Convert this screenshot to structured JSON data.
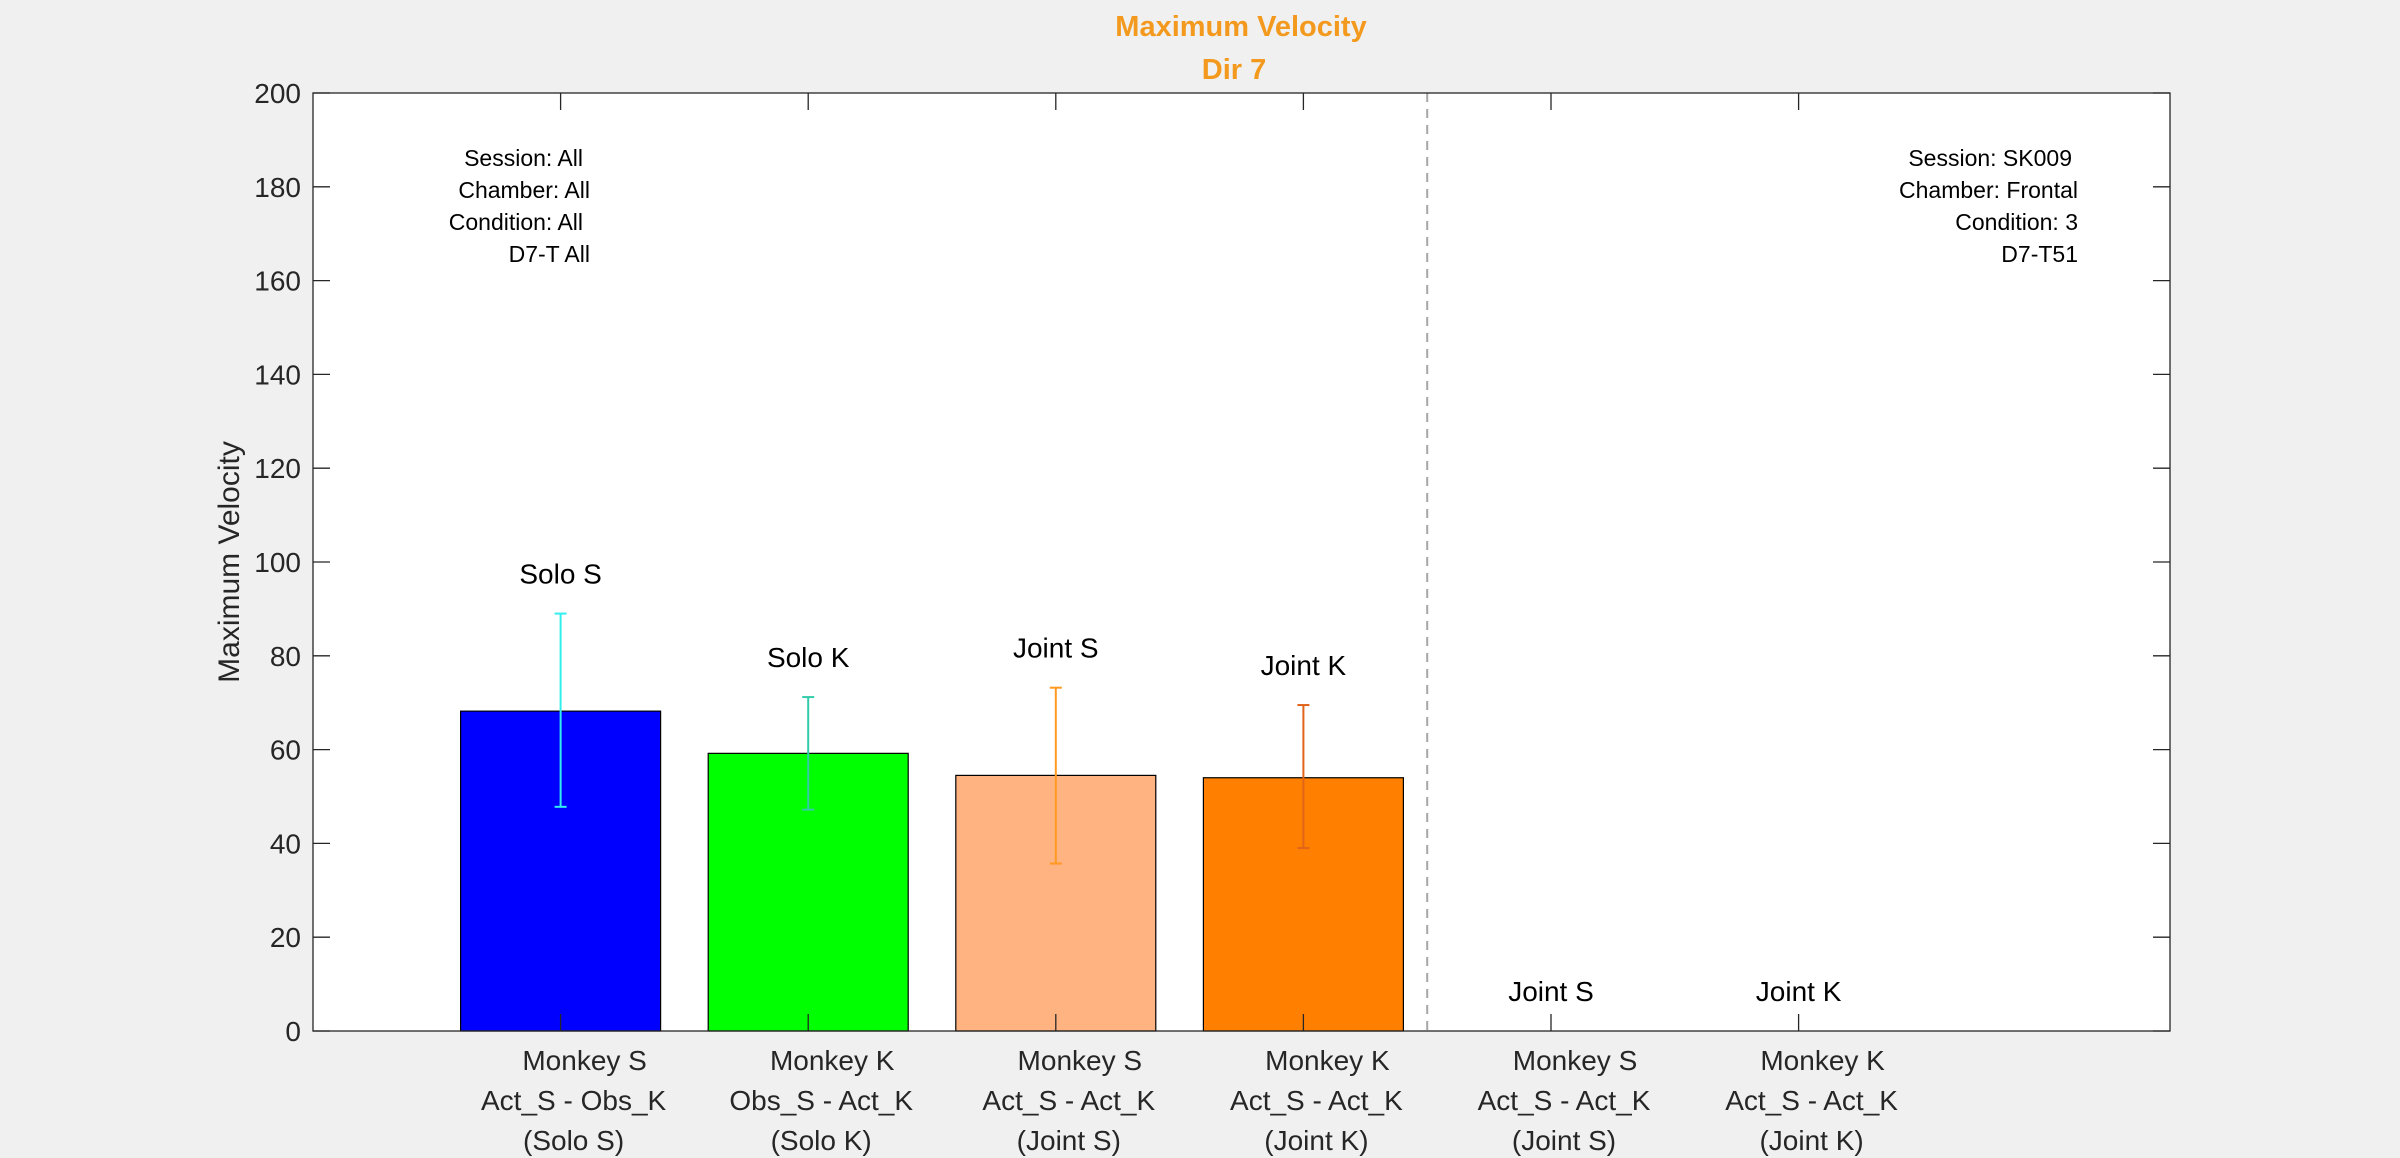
{
  "title_line1": "Maximum Velocity",
  "title_line2": "Dir 7",
  "colors": {
    "title": "#f39a1e",
    "background": "#f0f0f0",
    "plot_bg": "#ffffff",
    "axis": "#262626",
    "divider": "#a6a6a6"
  },
  "annotations": {
    "left": [
      "Session: All",
      "Chamber: All",
      "Condition: All",
      "D7-T All"
    ],
    "right": [
      "Session: SK009",
      "Chamber: Frontal",
      "Condition: 3",
      "D7-T51"
    ]
  },
  "chart_data": {
    "type": "bar",
    "title": "Maximum Velocity",
    "subtitle": "Dir 7",
    "ylabel": "Maximum Velocity",
    "xlabel": "",
    "ylim": [
      0,
      200
    ],
    "yticks": [
      0,
      20,
      40,
      60,
      80,
      100,
      120,
      140,
      160,
      180,
      200
    ],
    "xlim": [
      0,
      7.5
    ],
    "grid": false,
    "divider_x": 4.5,
    "categories": [
      {
        "line1": "Monkey S",
        "line2": "Act_S - Obs_K",
        "line3": "(Solo S)"
      },
      {
        "line1": "Monkey K",
        "line2": "Obs_S - Act_K",
        "line3": "(Solo K)"
      },
      {
        "line1": "Monkey S",
        "line2": "Act_S - Act_K",
        "line3": "(Joint S)"
      },
      {
        "line1": "Monkey K",
        "line2": "Act_S - Act_K",
        "line3": "(Joint K)"
      },
      {
        "line1": "Monkey S",
        "line2": "Act_S - Act_K",
        "line3": "(Joint S)"
      },
      {
        "line1": "Monkey K",
        "line2": "Act_S - Act_K",
        "line3": "(Joint K)"
      }
    ],
    "bars": [
      {
        "label": "Solo S",
        "x": 1,
        "value": 68.2,
        "err_low": 47.8,
        "err_high": 89.0,
        "color": "#0000ff",
        "err_color": "#33eeee"
      },
      {
        "label": "Solo K",
        "x": 2,
        "value": 59.2,
        "err_low": 47.2,
        "err_high": 71.2,
        "color": "#00ff00",
        "err_color": "#33ccaa"
      },
      {
        "label": "Joint S",
        "x": 3,
        "value": 54.5,
        "err_low": 35.7,
        "err_high": 73.2,
        "color": "#ffb380",
        "err_color": "#ff9922"
      },
      {
        "label": "Joint K",
        "x": 4,
        "value": 54.0,
        "err_low": 39.0,
        "err_high": 69.5,
        "color": "#ff8000",
        "err_color": "#e0641a"
      },
      {
        "label": "Joint S",
        "x": 5,
        "value": 0,
        "err_low": null,
        "err_high": null,
        "color": "#ffb380",
        "err_color": "#ff9922"
      },
      {
        "label": "Joint K",
        "x": 6,
        "value": 0,
        "err_low": null,
        "err_high": null,
        "color": "#ff8000",
        "err_color": "#e0641a"
      }
    ]
  }
}
